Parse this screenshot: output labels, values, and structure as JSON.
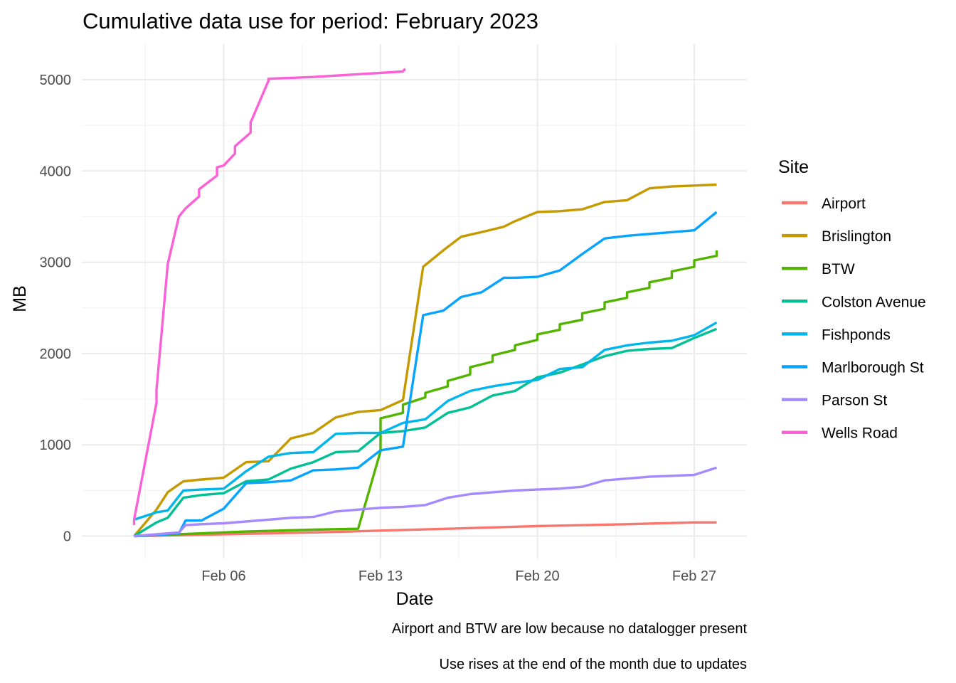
{
  "chart_data": {
    "type": "line",
    "title": "Cumulative data use for period: February 2023",
    "xlabel": "Date",
    "ylabel": "MB",
    "x_ticks": [
      "Feb 06",
      "Feb 13",
      "Feb 20",
      "Feb 27"
    ],
    "y_ticks": [
      "0",
      "1000",
      "2000",
      "3000",
      "4000",
      "5000"
    ],
    "y_tick_values": [
      0,
      1000,
      2000,
      3000,
      4000,
      5000
    ],
    "x_tick_days": [
      6,
      13,
      20,
      27
    ],
    "xlim": [
      "2023-02-01",
      "2023-02-28"
    ],
    "ylim": [
      -200,
      5400
    ],
    "grid": true,
    "legend": {
      "title": "Site",
      "position": "right"
    },
    "captions": [
      "Airport and BTW are low because no datalogger present",
      "Use rises at the end of the month due to updates"
    ],
    "series": [
      {
        "name": "Airport",
        "color": "#F8766D",
        "points": [
          [
            2,
            0
          ],
          [
            6,
            20
          ],
          [
            10,
            40
          ],
          [
            13,
            60
          ],
          [
            16,
            80
          ],
          [
            20,
            110
          ],
          [
            24,
            130
          ],
          [
            27,
            150
          ],
          [
            28,
            150
          ]
        ]
      },
      {
        "name": "Brislington",
        "color": "#C49A00",
        "points": [
          [
            2,
            0
          ],
          [
            3,
            290
          ],
          [
            3.5,
            480
          ],
          [
            4.2,
            600
          ],
          [
            5,
            620
          ],
          [
            6,
            640
          ],
          [
            7,
            810
          ],
          [
            8,
            820
          ],
          [
            9,
            1070
          ],
          [
            10,
            1130
          ],
          [
            11,
            1300
          ],
          [
            12,
            1360
          ],
          [
            13,
            1380
          ],
          [
            14,
            1490
          ],
          [
            14.9,
            2950
          ],
          [
            15.8,
            3130
          ],
          [
            16.6,
            3280
          ],
          [
            17.5,
            3330
          ],
          [
            18.5,
            3390
          ],
          [
            19,
            3450
          ],
          [
            20,
            3550
          ],
          [
            21,
            3560
          ],
          [
            22,
            3580
          ],
          [
            23,
            3660
          ],
          [
            24,
            3680
          ],
          [
            25,
            3810
          ],
          [
            26,
            3830
          ],
          [
            27,
            3840
          ],
          [
            28,
            3850
          ]
        ]
      },
      {
        "name": "BTW",
        "color": "#53B400",
        "points": [
          [
            2,
            0
          ],
          [
            4,
            20
          ],
          [
            7,
            50
          ],
          [
            10,
            70
          ],
          [
            12,
            80
          ],
          [
            13,
            930
          ],
          [
            13,
            1290
          ],
          [
            14,
            1350
          ],
          [
            14,
            1440
          ],
          [
            15,
            1520
          ],
          [
            15,
            1570
          ],
          [
            16,
            1640
          ],
          [
            16,
            1700
          ],
          [
            17,
            1770
          ],
          [
            17,
            1850
          ],
          [
            18,
            1910
          ],
          [
            18,
            1980
          ],
          [
            19,
            2040
          ],
          [
            19,
            2090
          ],
          [
            20,
            2150
          ],
          [
            20,
            2210
          ],
          [
            21,
            2260
          ],
          [
            21,
            2320
          ],
          [
            22,
            2370
          ],
          [
            22,
            2440
          ],
          [
            23,
            2490
          ],
          [
            23,
            2560
          ],
          [
            24,
            2610
          ],
          [
            24,
            2670
          ],
          [
            25,
            2720
          ],
          [
            25,
            2780
          ],
          [
            26,
            2830
          ],
          [
            26,
            2900
          ],
          [
            27,
            2950
          ],
          [
            27,
            3020
          ],
          [
            28,
            3070
          ],
          [
            28,
            3130
          ]
        ]
      },
      {
        "name": "Colston Avenue",
        "color": "#00C094",
        "points": [
          [
            2,
            0
          ],
          [
            3,
            150
          ],
          [
            3.5,
            200
          ],
          [
            4.2,
            420
          ],
          [
            5,
            450
          ],
          [
            6,
            470
          ],
          [
            7,
            600
          ],
          [
            8,
            620
          ],
          [
            9,
            740
          ],
          [
            10,
            810
          ],
          [
            11,
            920
          ],
          [
            12,
            930
          ],
          [
            13,
            1130
          ],
          [
            14,
            1150
          ],
          [
            15,
            1190
          ],
          [
            16,
            1350
          ],
          [
            17,
            1410
          ],
          [
            18,
            1540
          ],
          [
            19,
            1590
          ],
          [
            20,
            1740
          ],
          [
            21,
            1790
          ],
          [
            22,
            1880
          ],
          [
            23,
            1970
          ],
          [
            24,
            2030
          ],
          [
            25,
            2050
          ],
          [
            26,
            2060
          ],
          [
            27,
            2170
          ],
          [
            28,
            2270
          ]
        ]
      },
      {
        "name": "Fishponds",
        "color": "#00B6EB",
        "points": [
          [
            2,
            180
          ],
          [
            3,
            260
          ],
          [
            3.5,
            280
          ],
          [
            4.2,
            500
          ],
          [
            5,
            510
          ],
          [
            6,
            520
          ],
          [
            7,
            710
          ],
          [
            8,
            870
          ],
          [
            9,
            910
          ],
          [
            10,
            920
          ],
          [
            11,
            1120
          ],
          [
            12,
            1130
          ],
          [
            13,
            1130
          ],
          [
            14,
            1240
          ],
          [
            15,
            1280
          ],
          [
            16,
            1480
          ],
          [
            17,
            1590
          ],
          [
            18,
            1640
          ],
          [
            19,
            1680
          ],
          [
            20,
            1710
          ],
          [
            21,
            1830
          ],
          [
            22,
            1850
          ],
          [
            23,
            2040
          ],
          [
            24,
            2090
          ],
          [
            25,
            2120
          ],
          [
            26,
            2140
          ],
          [
            27,
            2200
          ],
          [
            28,
            2340
          ]
        ]
      },
      {
        "name": "Marlborough St",
        "color": "#06A4FF",
        "points": [
          [
            2,
            0
          ],
          [
            3,
            10
          ],
          [
            4,
            30
          ],
          [
            4.3,
            170
          ],
          [
            5,
            170
          ],
          [
            6,
            300
          ],
          [
            7,
            580
          ],
          [
            8,
            590
          ],
          [
            9,
            610
          ],
          [
            10,
            720
          ],
          [
            11,
            730
          ],
          [
            12,
            750
          ],
          [
            13,
            940
          ],
          [
            14,
            980
          ],
          [
            14.9,
            2420
          ],
          [
            15.8,
            2470
          ],
          [
            16.6,
            2620
          ],
          [
            17.5,
            2670
          ],
          [
            18.5,
            2830
          ],
          [
            19,
            2830
          ],
          [
            20,
            2840
          ],
          [
            21,
            2910
          ],
          [
            22,
            3090
          ],
          [
            23,
            3260
          ],
          [
            24,
            3290
          ],
          [
            25,
            3310
          ],
          [
            26,
            3330
          ],
          [
            27,
            3350
          ],
          [
            28,
            3550
          ]
        ]
      },
      {
        "name": "Parson St",
        "color": "#A58AFF",
        "points": [
          [
            2,
            0
          ],
          [
            4,
            40
          ],
          [
            4.3,
            120
          ],
          [
            5,
            130
          ],
          [
            6,
            140
          ],
          [
            7,
            160
          ],
          [
            8,
            180
          ],
          [
            9,
            200
          ],
          [
            10,
            210
          ],
          [
            11,
            270
          ],
          [
            12,
            290
          ],
          [
            13,
            310
          ],
          [
            14,
            320
          ],
          [
            15,
            340
          ],
          [
            16,
            420
          ],
          [
            17,
            460
          ],
          [
            18,
            480
          ],
          [
            19,
            500
          ],
          [
            20,
            510
          ],
          [
            21,
            520
          ],
          [
            22,
            540
          ],
          [
            23,
            610
          ],
          [
            24,
            630
          ],
          [
            25,
            650
          ],
          [
            26,
            660
          ],
          [
            27,
            670
          ],
          [
            28,
            750
          ]
        ]
      },
      {
        "name": "Wells Road",
        "color": "#FB61D7",
        "points": [
          [
            2,
            120
          ],
          [
            2,
            180
          ],
          [
            3,
            1460
          ],
          [
            3,
            1600
          ],
          [
            3.5,
            2980
          ],
          [
            4,
            3500
          ],
          [
            4.3,
            3590
          ],
          [
            4.9,
            3720
          ],
          [
            4.9,
            3800
          ],
          [
            5.7,
            3950
          ],
          [
            5.7,
            4040
          ],
          [
            6,
            4060
          ],
          [
            6.5,
            4190
          ],
          [
            6.5,
            4270
          ],
          [
            7.2,
            4420
          ],
          [
            7.2,
            4530
          ],
          [
            8,
            4990
          ],
          [
            8,
            5010
          ],
          [
            9,
            5020
          ],
          [
            10,
            5030
          ],
          [
            12,
            5060
          ],
          [
            14,
            5090
          ],
          [
            14.1,
            5120
          ]
        ]
      }
    ]
  }
}
